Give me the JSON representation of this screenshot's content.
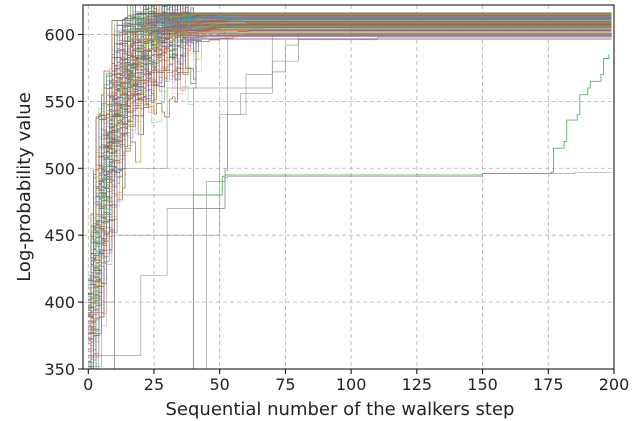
{
  "chart_data": {
    "type": "line",
    "title": "",
    "xlabel": "Sequential number of the walkers step",
    "ylabel": "Log-probability value",
    "xlim": [
      -2,
      200
    ],
    "ylim": [
      350,
      622
    ],
    "x_ticks": [
      0,
      25,
      50,
      75,
      100,
      125,
      150,
      175,
      200
    ],
    "y_ticks": [
      350,
      400,
      450,
      500,
      550,
      600
    ],
    "x_tick_labels": [
      "0",
      "25",
      "50",
      "75",
      "100",
      "125",
      "150",
      "175",
      "200"
    ],
    "y_tick_labels": [
      "350",
      "400",
      "450",
      "500",
      "550",
      "600"
    ],
    "grid": true,
    "legend": "none",
    "series_count_approx": 500,
    "converged_band": [
      596,
      616
    ],
    "representative_series": [
      {
        "x": [
          0,
          5,
          10,
          40,
          41,
          199
        ],
        "y": [
          352,
          400,
          480,
          560,
          612,
          613
        ]
      },
      {
        "x": [
          0,
          20,
          30,
          52,
          53,
          199
        ],
        "y": [
          360,
          420,
          470,
          500,
          600,
          601
        ]
      },
      {
        "x": [
          0,
          40,
          52,
          53,
          60,
          70,
          75,
          80,
          110,
          199
        ],
        "y": [
          350,
          470,
          498,
          540,
          570,
          572,
          592,
          596,
          598,
          599
        ]
      },
      {
        "x": [
          0,
          45,
          52,
          53,
          140,
          150,
          185,
          199
        ],
        "y": [
          350,
          490,
          493,
          494,
          494,
          496,
          497,
          497
        ]
      },
      {
        "x": [
          0,
          10,
          50,
          58,
          70,
          80,
          199
        ],
        "y": [
          350,
          450,
          540,
          556,
          580,
          600,
          601
        ]
      },
      {
        "x": [
          0,
          10,
          30,
          70,
          100,
          199
        ],
        "y": [
          350,
          500,
          560,
          600,
          605,
          606
        ]
      }
    ],
    "highlighted_series": {
      "name": "",
      "x": [
        0,
        40,
        51,
        52,
        120,
        150,
        176,
        177,
        181,
        182,
        186,
        187,
        190,
        191,
        195,
        196,
        198
      ],
      "y": [
        350,
        480,
        494,
        495,
        495,
        496,
        497,
        515,
        520,
        536,
        540,
        555,
        560,
        565,
        570,
        582,
        585
      ]
    },
    "palette": [
      "#1f77b4",
      "#ff7f0e",
      "#2ca02c",
      "#d62728",
      "#9467bd",
      "#8c564b",
      "#e377c2",
      "#7f7f7f",
      "#bcbd22",
      "#17becf"
    ]
  }
}
